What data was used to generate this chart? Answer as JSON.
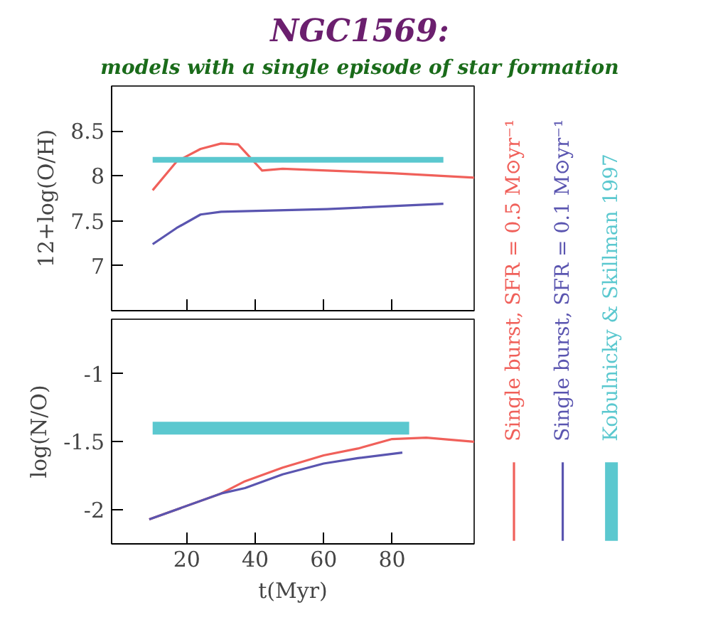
{
  "chart_data": [
    {
      "type": "line",
      "title": "NGC1569:",
      "subtitle": "models with a single episode of star formation",
      "ylabel": "12+log(O/H)",
      "xlim": [
        -2,
        104
      ],
      "ylim": [
        6.5,
        9
      ],
      "xticks": [
        20,
        40,
        60,
        80
      ],
      "yticks": [
        7,
        7.5,
        8,
        8.5
      ],
      "tick_labels": "y",
      "grid": false,
      "legend": "right",
      "series": [
        {
          "name": "Single burst, SFR = 0.5 M⊙yr⁻¹",
          "color": "#f0605a",
          "x": [
            10,
            17,
            24,
            30,
            35,
            42,
            48,
            61,
            80,
            104
          ],
          "values": [
            7.84,
            8.16,
            8.3,
            8.36,
            8.35,
            8.06,
            8.08,
            8.06,
            8.03,
            7.98
          ]
        },
        {
          "name": "Single burst, SFR = 0.1 M⊙yr⁻¹",
          "color": "#5a55b0",
          "x": [
            10,
            17,
            24,
            30,
            61,
            95
          ],
          "values": [
            7.24,
            7.42,
            7.57,
            7.6,
            7.63,
            7.69
          ]
        },
        {
          "name": "Kobulnicky & Skillman 1997",
          "color": "#5bc8cf",
          "x": [
            10,
            95
          ],
          "values": [
            8.18,
            8.18
          ]
        }
      ]
    },
    {
      "type": "line",
      "xlabel": "t(Myr)",
      "ylabel": "log(N/O)",
      "xlim": [
        -2,
        104
      ],
      "ylim": [
        -2.25,
        -0.6
      ],
      "xticks": [
        20,
        40,
        60,
        80
      ],
      "yticks": [
        -2,
        -1.5,
        -1
      ],
      "grid": false,
      "series": [
        {
          "color": "#f0605a",
          "x": [
            9,
            30,
            37,
            48,
            60,
            70,
            80,
            90,
            104
          ],
          "values": [
            -2.07,
            -1.88,
            -1.79,
            -1.69,
            -1.6,
            -1.55,
            -1.48,
            -1.47,
            -1.5
          ]
        },
        {
          "color": "#5a55b0",
          "x": [
            9,
            30,
            37,
            48,
            60,
            70,
            83
          ],
          "values": [
            -2.07,
            -1.88,
            -1.84,
            -1.74,
            -1.66,
            -1.62,
            -1.58
          ]
        },
        {
          "color": "#5bc8cf",
          "x": [
            10,
            85
          ],
          "values": [
            -1.4,
            -1.4
          ]
        }
      ]
    }
  ]
}
